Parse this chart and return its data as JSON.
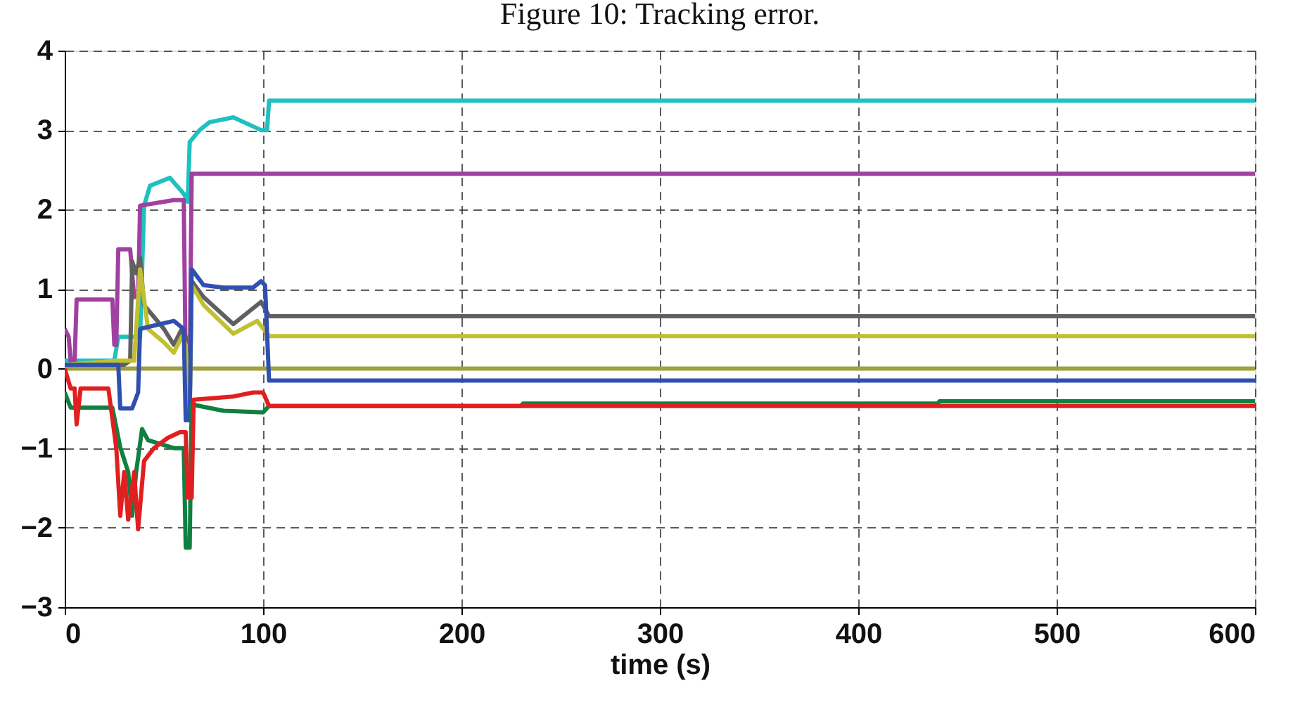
{
  "chart_data": {
    "type": "line",
    "title": "Figure 10: Tracking error.",
    "xlabel": "time (s)",
    "xlim": [
      0,
      600
    ],
    "xticks": [
      0,
      100,
      200,
      300,
      400,
      500,
      600
    ],
    "ylim": [
      -3,
      4
    ],
    "yticks": [
      -3,
      -2,
      -1,
      0,
      1,
      2,
      3,
      4
    ],
    "grid": true,
    "marker": "none",
    "line_style": "solid",
    "series": [
      {
        "color": "#a0a040",
        "x": [
          0,
          600
        ],
        "values": [
          0,
          0
        ]
      },
      {
        "color": "#20c0c0",
        "x": [
          0,
          25,
          27,
          33,
          38,
          40,
          43,
          53,
          60,
          62,
          63,
          68,
          73,
          85,
          99,
          102,
          103,
          600
        ],
        "values": [
          0.1,
          0.1,
          0.4,
          0.4,
          0.4,
          2.05,
          2.3,
          2.4,
          2.2,
          2.1,
          2.85,
          3.0,
          3.1,
          3.16,
          3.0,
          3.0,
          3.37,
          3.37
        ]
      },
      {
        "color": "#a040a0",
        "x": [
          0,
          2,
          3,
          5,
          6,
          24,
          25,
          26,
          27,
          33,
          35,
          37,
          38,
          55,
          60,
          61,
          63,
          64,
          600
        ],
        "values": [
          0.5,
          0.4,
          0.1,
          0.1,
          0.87,
          0.87,
          0.3,
          0.3,
          1.5,
          1.5,
          0.9,
          0.9,
          2.05,
          2.12,
          2.12,
          0,
          0,
          2.45,
          2.45
        ]
      },
      {
        "color": "#606060",
        "x": [
          0,
          30,
          33,
          34,
          36,
          38,
          40,
          50,
          55,
          59,
          61,
          62,
          63,
          64,
          70,
          85,
          99,
          103,
          600
        ],
        "values": [
          0.05,
          0.05,
          0.1,
          1.35,
          1.2,
          1.4,
          0.8,
          0.5,
          0.3,
          0.5,
          0.4,
          -0.5,
          -0.5,
          1.1,
          0.9,
          0.56,
          0.84,
          0.66,
          0.66
        ]
      },
      {
        "color": "#c0c030",
        "x": [
          0,
          27,
          35,
          38,
          42,
          50,
          55,
          59,
          61,
          62,
          63,
          64,
          70,
          85,
          97,
          103,
          600
        ],
        "values": [
          0.05,
          0.1,
          0.1,
          1.25,
          0.5,
          0.33,
          0.2,
          0.4,
          0.3,
          -0.5,
          -0.5,
          1.05,
          0.8,
          0.44,
          0.6,
          0.41,
          0.41
        ]
      },
      {
        "color": "#3050b0",
        "x": [
          0,
          27,
          28,
          34,
          37,
          38,
          55,
          60,
          61,
          63,
          64,
          70,
          80,
          95,
          99,
          101,
          103,
          600
        ],
        "values": [
          0.05,
          0.05,
          -0.5,
          -0.5,
          -0.3,
          0.5,
          0.6,
          0.5,
          -0.65,
          -0.65,
          1.25,
          1.05,
          1.02,
          1.02,
          1.1,
          1.05,
          -0.15,
          -0.15
        ]
      },
      {
        "color": "#108040",
        "x": [
          0,
          3,
          24,
          28,
          32,
          34,
          36,
          39,
          42,
          55,
          60,
          61,
          63,
          64,
          80,
          100,
          103,
          230,
          231,
          440,
          441,
          600
        ],
        "values": [
          -0.3,
          -0.49,
          -0.49,
          -0.99,
          -1.3,
          -1.85,
          -1.3,
          -0.76,
          -0.9,
          -1.0,
          -1.0,
          -2.25,
          -2.25,
          -0.45,
          -0.53,
          -0.55,
          -0.47,
          -0.47,
          -0.44,
          -0.44,
          -0.41,
          -0.41
        ]
      },
      {
        "color": "#e02020",
        "x": [
          0,
          3,
          5,
          6,
          8,
          22,
          26,
          28,
          30,
          32,
          35,
          37,
          40,
          45,
          52,
          58,
          61,
          62,
          64,
          65,
          85,
          95,
          100,
          103,
          600
        ],
        "values": [
          0,
          -0.25,
          -0.25,
          -0.7,
          -0.25,
          -0.25,
          -1.0,
          -1.85,
          -1.3,
          -1.9,
          -1.3,
          -2.02,
          -1.16,
          -1.0,
          -0.87,
          -0.8,
          -0.8,
          -1.62,
          -1.62,
          -0.39,
          -0.35,
          -0.3,
          -0.3,
          -0.47,
          -0.47
        ]
      }
    ]
  }
}
